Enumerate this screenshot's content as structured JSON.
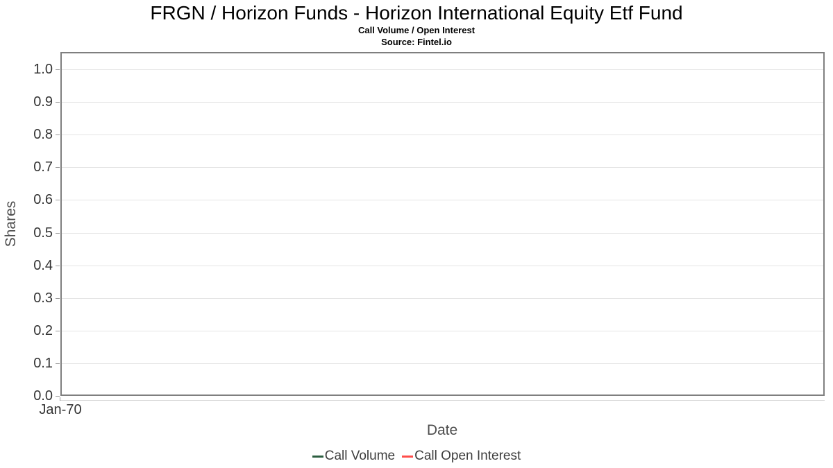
{
  "chart_data": {
    "type": "line",
    "title": "FRGN / Horizon Funds - Horizon International Equity Etf Fund",
    "subtitle": "Call Volume / Open Interest",
    "source": "Source: Fintel.io",
    "xlabel": "Date",
    "ylabel": "Shares",
    "ylim": [
      0.0,
      1.05
    ],
    "yticks": [
      0.0,
      0.1,
      0.2,
      0.3,
      0.4,
      0.5,
      0.6,
      0.7,
      0.8,
      0.9,
      1.0
    ],
    "ytick_labels": [
      "0.0",
      "0.1",
      "0.2",
      "0.3",
      "0.4",
      "0.5",
      "0.6",
      "0.7",
      "0.8",
      "0.9",
      "1.0"
    ],
    "xticks": [
      "Jan-70"
    ],
    "grid": "horizontal",
    "legend_position": "bottom",
    "series": [
      {
        "name": "Call Volume",
        "color": "#2c5e40",
        "x": [],
        "values": []
      },
      {
        "name": "Call Open Interest",
        "color": "#ff4d4a",
        "x": [],
        "values": []
      }
    ]
  },
  "colors": {
    "plot_border": "#7f7f7f",
    "gridline": "#e4e4e4",
    "tick": "#999999",
    "axis_line": "#d9d9d9"
  }
}
